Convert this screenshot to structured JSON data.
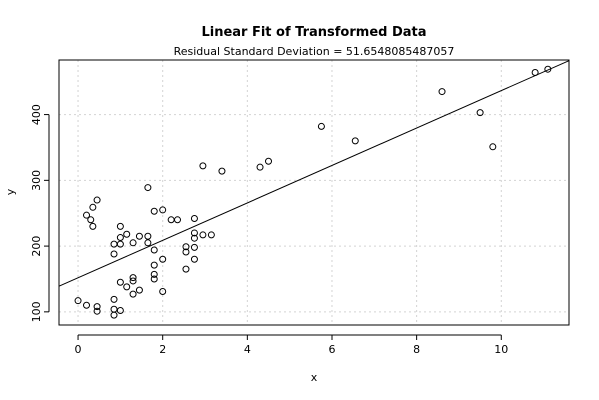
{
  "chart_data": {
    "type": "scatter",
    "title": "Linear Fit of Transformed Data",
    "subtitle": "Residual Standard Deviation =  51.6548085487057",
    "xlabel": "x",
    "ylabel": "y",
    "xlim": [
      -0.45,
      11.6
    ],
    "ylim": [
      80,
      483
    ],
    "xticks": [
      0,
      2,
      4,
      6,
      8,
      10
    ],
    "yticks": [
      100,
      200,
      300,
      400
    ],
    "grid": true,
    "points": [
      {
        "x": 0.0,
        "y": 117
      },
      {
        "x": 0.2,
        "y": 110
      },
      {
        "x": 0.45,
        "y": 108
      },
      {
        "x": 0.45,
        "y": 101
      },
      {
        "x": 0.2,
        "y": 247
      },
      {
        "x": 0.35,
        "y": 259
      },
      {
        "x": 0.3,
        "y": 240
      },
      {
        "x": 0.35,
        "y": 230
      },
      {
        "x": 0.45,
        "y": 270
      },
      {
        "x": 0.85,
        "y": 188
      },
      {
        "x": 0.85,
        "y": 203
      },
      {
        "x": 0.85,
        "y": 119
      },
      {
        "x": 0.85,
        "y": 104
      },
      {
        "x": 0.85,
        "y": 95
      },
      {
        "x": 1.0,
        "y": 102
      },
      {
        "x": 1.0,
        "y": 145
      },
      {
        "x": 1.0,
        "y": 203
      },
      {
        "x": 1.0,
        "y": 213
      },
      {
        "x": 1.0,
        "y": 230
      },
      {
        "x": 1.15,
        "y": 218
      },
      {
        "x": 1.15,
        "y": 138
      },
      {
        "x": 1.3,
        "y": 152
      },
      {
        "x": 1.3,
        "y": 147
      },
      {
        "x": 1.3,
        "y": 127
      },
      {
        "x": 1.3,
        "y": 205
      },
      {
        "x": 1.45,
        "y": 133
      },
      {
        "x": 1.45,
        "y": 215
      },
      {
        "x": 1.65,
        "y": 215
      },
      {
        "x": 1.65,
        "y": 205
      },
      {
        "x": 1.65,
        "y": 289
      },
      {
        "x": 1.8,
        "y": 253
      },
      {
        "x": 1.8,
        "y": 194
      },
      {
        "x": 1.8,
        "y": 171
      },
      {
        "x": 1.8,
        "y": 157
      },
      {
        "x": 1.8,
        "y": 150
      },
      {
        "x": 2.0,
        "y": 255
      },
      {
        "x": 2.0,
        "y": 180
      },
      {
        "x": 2.0,
        "y": 131
      },
      {
        "x": 2.2,
        "y": 240
      },
      {
        "x": 2.35,
        "y": 240
      },
      {
        "x": 2.55,
        "y": 199
      },
      {
        "x": 2.55,
        "y": 191
      },
      {
        "x": 2.55,
        "y": 165
      },
      {
        "x": 2.75,
        "y": 242
      },
      {
        "x": 2.75,
        "y": 220
      },
      {
        "x": 2.75,
        "y": 212
      },
      {
        "x": 2.75,
        "y": 198
      },
      {
        "x": 2.75,
        "y": 180
      },
      {
        "x": 2.95,
        "y": 322
      },
      {
        "x": 2.95,
        "y": 217
      },
      {
        "x": 3.15,
        "y": 217
      },
      {
        "x": 3.4,
        "y": 314
      },
      {
        "x": 4.3,
        "y": 320
      },
      {
        "x": 4.5,
        "y": 329
      },
      {
        "x": 5.75,
        "y": 382
      },
      {
        "x": 6.55,
        "y": 360
      },
      {
        "x": 8.6,
        "y": 435
      },
      {
        "x": 9.5,
        "y": 403
      },
      {
        "x": 9.8,
        "y": 351
      },
      {
        "x": 10.8,
        "y": 464
      },
      {
        "x": 11.1,
        "y": 469
      }
    ],
    "fit_line": {
      "x": [
        -0.45,
        11.6
      ],
      "y": [
        139,
        482
      ]
    }
  }
}
